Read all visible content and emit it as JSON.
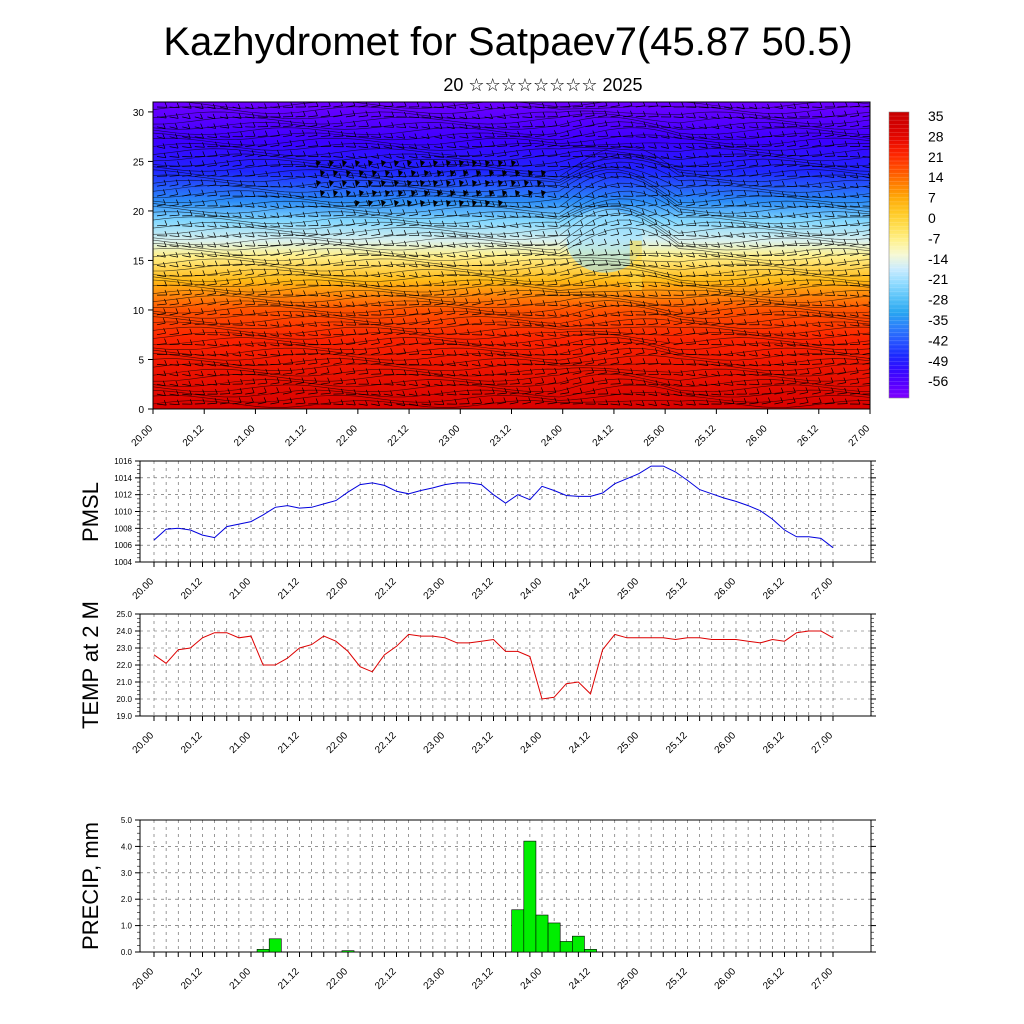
{
  "page": {
    "title": "Kazhydromet for Satpaev7(45.87 50.5)",
    "subtitle": "20 ☆☆☆☆☆☆☆☆ 2025"
  },
  "colors": {
    "pmsl_line": "#0000dd",
    "temp_line": "#dd0000",
    "precip_bar": "#00ee00",
    "cbar": [
      "#7f00ff",
      "#4000ff",
      "#1a2cff",
      "#2e7fff",
      "#28b6f0",
      "#a8e6ff",
      "#fffccf",
      "#ffe14d",
      "#ffb000",
      "#ff7000",
      "#ff3000",
      "#e60000",
      "#c80000",
      "#ff8080"
    ]
  },
  "chart_data": [
    {
      "type": "heatmap",
      "name": "upper-air temperature cross-section with wind barbs",
      "x_ticks": [
        "20.00",
        "20.12",
        "21.00",
        "21.12",
        "22.00",
        "22.12",
        "23.00",
        "23.12",
        "24.00",
        "24.12",
        "25.00",
        "25.12",
        "26.00",
        "26.12",
        "27.00"
      ],
      "y_ticks": [
        0,
        5,
        10,
        15,
        20,
        25,
        30
      ],
      "ylim": [
        0,
        31
      ],
      "colorbar_labels": [
        "35",
        "28",
        "21",
        "14",
        "7",
        "0",
        "-7",
        "-14",
        "-21",
        "-28",
        "-35",
        "-42",
        "-49",
        "-56"
      ],
      "zones": [
        {
          "top": 31,
          "bottom": 27,
          "value": -56
        },
        {
          "top": 27,
          "bottom": 23,
          "value": -49
        },
        {
          "top": 23,
          "bottom": 20,
          "value": -35
        },
        {
          "top": 20,
          "bottom": 17,
          "value": -21
        },
        {
          "top": 17,
          "bottom": 15,
          "value": -7
        },
        {
          "top": 15,
          "bottom": 11,
          "value": 7
        },
        {
          "top": 11,
          "bottom": 7,
          "value": 21
        },
        {
          "top": 7,
          "bottom": 0,
          "value": 30
        }
      ]
    },
    {
      "type": "line",
      "ylabel": "PMSL",
      "x_ticks": [
        "20.00",
        "20.12",
        "21.00",
        "21.12",
        "22.00",
        "22.12",
        "23.00",
        "23.12",
        "24.00",
        "24.12",
        "25.00",
        "25.12",
        "26.00",
        "26.12",
        "27.00"
      ],
      "y_ticks": [
        "1004",
        "1006",
        "1008",
        "1010",
        "1012",
        "1014",
        "1016"
      ],
      "ylim": [
        1004,
        1016
      ],
      "x_hours": [
        0,
        3,
        6,
        9,
        12,
        15,
        18,
        21,
        24,
        27,
        30,
        33,
        36,
        39,
        42,
        45,
        48,
        51,
        54,
        57,
        60,
        63,
        66,
        69,
        72,
        75,
        78,
        81,
        84,
        87,
        90,
        93,
        96,
        99,
        102,
        105,
        108,
        111,
        114,
        117,
        120,
        123,
        126,
        129,
        132,
        135,
        138,
        141,
        144,
        147,
        150,
        153,
        156,
        159,
        162,
        165,
        168
      ],
      "values": [
        1006.6,
        1007.9,
        1008.0,
        1007.8,
        1007.2,
        1006.9,
        1008.2,
        1008.5,
        1008.8,
        1009.6,
        1010.5,
        1010.7,
        1010.4,
        1010.5,
        1010.9,
        1011.3,
        1012.3,
        1013.2,
        1013.4,
        1013.1,
        1012.4,
        1012.1,
        1012.5,
        1012.8,
        1013.2,
        1013.4,
        1013.4,
        1013.2,
        1012.0,
        1011.0,
        1012.0,
        1011.4,
        1013.0,
        1012.5,
        1011.9,
        1011.8,
        1011.8,
        1012.2,
        1013.3,
        1013.9,
        1014.5,
        1015.4,
        1015.4,
        1014.7,
        1013.7,
        1012.6,
        1012.1,
        1011.6,
        1011.2,
        1010.7,
        1010.1,
        1009.1,
        1007.8,
        1007.0,
        1007.0,
        1006.8,
        1005.7
      ]
    },
    {
      "type": "line",
      "ylabel": "TEMP at 2 M",
      "x_ticks": [
        "20.00",
        "20.12",
        "21.00",
        "21.12",
        "22.00",
        "22.12",
        "23.00",
        "23.12",
        "24.00",
        "24.12",
        "25.00",
        "25.12",
        "26.00",
        "26.12",
        "27.00"
      ],
      "y_ticks": [
        "19.0",
        "20.0",
        "21.0",
        "22.0",
        "23.0",
        "24.0",
        "25.0"
      ],
      "ylim": [
        19,
        25
      ],
      "x_hours": [
        0,
        3,
        6,
        9,
        12,
        15,
        18,
        21,
        24,
        27,
        30,
        33,
        36,
        39,
        42,
        45,
        48,
        51,
        54,
        57,
        60,
        63,
        66,
        69,
        72,
        75,
        78,
        81,
        84,
        87,
        90,
        93,
        96,
        99,
        102,
        105,
        108,
        111,
        114,
        117,
        120,
        123,
        126,
        129,
        132,
        135,
        138,
        141,
        144,
        147,
        150,
        153,
        156,
        159,
        162,
        165,
        168
      ],
      "values": [
        22.6,
        22.1,
        22.9,
        23.0,
        23.6,
        23.9,
        23.9,
        23.6,
        23.7,
        22.0,
        22.0,
        22.4,
        23.0,
        23.2,
        23.7,
        23.4,
        22.8,
        21.9,
        21.6,
        22.6,
        23.1,
        23.8,
        23.7,
        23.7,
        23.6,
        23.3,
        23.3,
        23.4,
        23.5,
        22.8,
        22.8,
        22.5,
        20.0,
        20.1,
        20.9,
        21.0,
        20.3,
        22.9,
        23.8,
        23.6,
        23.6,
        23.6,
        23.6,
        23.5,
        23.6,
        23.6,
        23.5,
        23.5,
        23.5,
        23.4,
        23.3,
        23.5,
        23.4,
        23.9,
        24.0,
        24.0,
        23.6
      ]
    },
    {
      "type": "bar",
      "ylabel": "PRECIP, mm",
      "x_ticks": [
        "20.00",
        "20.12",
        "21.00",
        "21.12",
        "22.00",
        "22.12",
        "23.00",
        "23.12",
        "24.00",
        "24.12",
        "25.00",
        "25.12",
        "26.00",
        "26.12",
        "27.00"
      ],
      "y_ticks": [
        "0.0",
        "1.0",
        "2.0",
        "3.0",
        "4.0",
        "5.0"
      ],
      "ylim": [
        0,
        5
      ],
      "bar_hours": [
        27,
        30,
        48,
        90,
        93,
        96,
        99,
        102,
        105,
        108,
        111
      ],
      "values": [
        0.1,
        0.5,
        0.05,
        1.6,
        4.2,
        1.4,
        1.1,
        0.4,
        0.6,
        0.1,
        0.0
      ]
    }
  ]
}
